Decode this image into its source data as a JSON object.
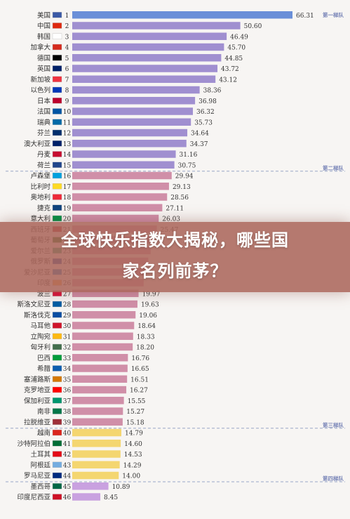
{
  "chart_data": {
    "type": "bar",
    "orientation": "horizontal",
    "xlim": [
      0,
      70
    ],
    "categories": [
      "美国",
      "中国",
      "韩国",
      "加拿大",
      "德国",
      "英国",
      "新加坡",
      "以色列",
      "日本",
      "法国",
      "瑞典",
      "芬兰",
      "澳大利亚",
      "丹麦",
      "荷兰",
      "卢森堡",
      "比利时",
      "奥地利",
      "捷克",
      "意大利",
      "西班牙",
      "葡萄牙",
      "爱尔兰",
      "俄罗斯",
      "爱沙尼亚",
      "印度",
      "波兰",
      "斯洛文尼亚",
      "斯洛伐克",
      "马耳他",
      "立陶宛",
      "匈牙利",
      "巴西",
      "希腊",
      "塞浦路斯",
      "克罗地亚",
      "保加利亚",
      "南非",
      "拉脱维亚",
      "越南",
      "沙特阿拉伯",
      "土耳其",
      "阿根廷",
      "罗马尼亚",
      "墨西哥",
      "印度尼西亚"
    ],
    "ranks": [
      "1",
      "2",
      "3",
      "4",
      "5",
      "6",
      "7",
      "8",
      "9",
      "10",
      "11",
      "12",
      "13",
      "14",
      "15",
      "16",
      "17",
      "18",
      "19",
      "20",
      "21",
      "22",
      "23",
      "24",
      "25",
      "26",
      "27",
      "28",
      "29",
      "30",
      "31",
      "32",
      "33",
      "34",
      "35",
      "36",
      "37",
      "38",
      "39",
      "40",
      "41",
      "42",
      "43",
      "44",
      "45",
      "46"
    ],
    "values": [
      66.31,
      50.6,
      46.49,
      45.7,
      44.85,
      43.72,
      43.12,
      38.36,
      36.98,
      36.32,
      35.73,
      34.64,
      34.37,
      31.16,
      30.75,
      29.94,
      29.13,
      28.56,
      27.11,
      26.03,
      25.47,
      24.2,
      23.6,
      22.9,
      22.3,
      21.5,
      19.97,
      19.63,
      19.06,
      18.64,
      18.33,
      18.2,
      16.76,
      16.65,
      16.51,
      16.27,
      15.55,
      15.27,
      15.18,
      14.79,
      14.6,
      14.53,
      14.29,
      14.0,
      10.89,
      8.45
    ],
    "value_labels": [
      "66.31",
      "50.60",
      "46.49",
      "45.70",
      "44.85",
      "43.72",
      "43.12",
      "38.36",
      "36.98",
      "36.32",
      "35.73",
      "34.64",
      "34.37",
      "31.16",
      "30.75",
      "29.94",
      "29.13",
      "28.56",
      "27.11",
      "26.03",
      "25.47",
      "",
      "",
      "",
      "",
      "",
      "19.97",
      "19.63",
      "19.06",
      "18.64",
      "18.33",
      "18.20",
      "16.76",
      "16.65",
      "16.51",
      "16.27",
      "15.55",
      "15.27",
      "15.18",
      "14.79",
      "14.60",
      "14.53",
      "14.29",
      "14.00",
      "10.89",
      "8.45"
    ],
    "tiers": [
      {
        "name": "第一梯队",
        "color": "#6a8fd8",
        "highlight_first": true,
        "others_color": "#a08fd0",
        "start": 0,
        "end": 15
      },
      {
        "name": "第二梯队",
        "color": "#d08fa8",
        "start": 15,
        "end": 39
      },
      {
        "name": "第三梯队",
        "color": "#f4d670",
        "start": 39,
        "end": 44
      },
      {
        "name": "第四梯队",
        "color": "#c9a1e0",
        "start": 44,
        "end": 46
      }
    ],
    "flag_colors": [
      "#3c5aa6",
      "#de2910",
      "#ffffff",
      "#d52b1e",
      "#000000",
      "#012169",
      "#ef3340",
      "#0038b8",
      "#bc002d",
      "#0055a4",
      "#006aa7",
      "#002f6c",
      "#012169",
      "#c60c30",
      "#21468b",
      "#00a1de",
      "#fdda24",
      "#ed2939",
      "#11457e",
      "#009246",
      "#aa151b",
      "#006600",
      "#169b62",
      "#0039a6",
      "#0072ce",
      "#ff9933",
      "#dc143c",
      "#005da4",
      "#0b4ea2",
      "#cf142b",
      "#fdb913",
      "#436f4d",
      "#009c3b",
      "#0d5eaf",
      "#d57800",
      "#ff0000",
      "#00966e",
      "#007749",
      "#9e3039",
      "#da251d",
      "#006c35",
      "#e30a17",
      "#74acdf",
      "#002b7f",
      "#006847",
      "#ce1126"
    ]
  },
  "banner": {
    "title_line1": "全球快乐指数大揭秘，哪些国",
    "title_line2": "家名列前茅？"
  }
}
